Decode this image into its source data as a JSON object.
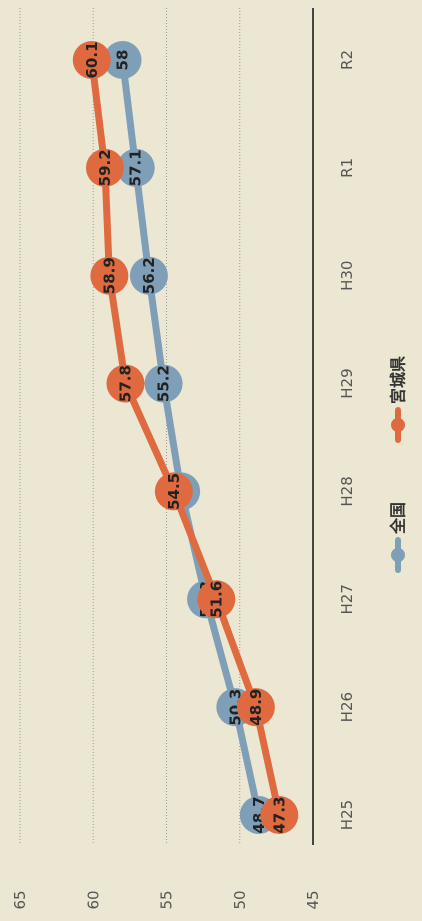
{
  "chart_data": {
    "type": "line",
    "orientation": "rotated-90-clockwise",
    "categories": [
      "H25",
      "H26",
      "H27",
      "H28",
      "H29",
      "H30",
      "R1",
      "R2"
    ],
    "series": [
      {
        "name": "全国",
        "color": "#7f9eb8",
        "values": [
          48.7,
          50.3,
          52.3,
          54,
          55.2,
          56.2,
          57.1,
          58
        ]
      },
      {
        "name": "宮城県",
        "color": "#e06a40",
        "values": [
          47.3,
          48.9,
          51.6,
          54.5,
          57.8,
          58.9,
          59.2,
          60.1
        ]
      }
    ],
    "ylim": [
      45,
      65
    ],
    "yticks": [
      45,
      50,
      55,
      60,
      65
    ],
    "grid": true,
    "legend_position": "bottom",
    "title": "",
    "xlabel": "",
    "ylabel": ""
  },
  "colors": {
    "background": "#ebe7d2",
    "gridline": "#9a9a9a",
    "baseline": "#444444"
  }
}
